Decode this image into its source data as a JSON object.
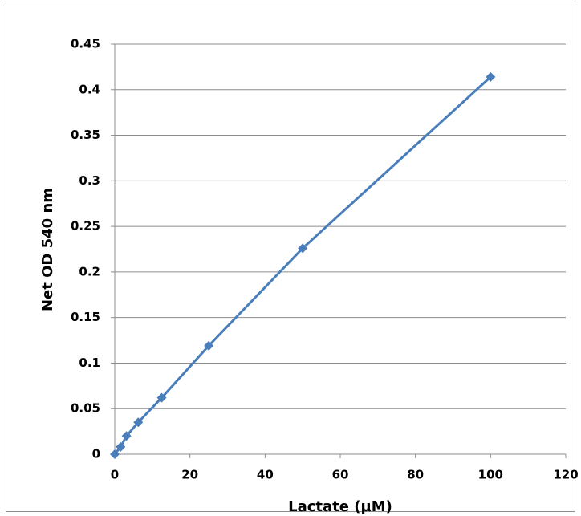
{
  "chart_data": {
    "type": "scatter",
    "x_label": "Lactate (µM)",
    "y_label": "Net OD 540 nm",
    "series": [
      {
        "color": "#4a7ebb",
        "x": [
          0,
          1.5625,
          3.125,
          6.25,
          12.5,
          25,
          50,
          100
        ],
        "values": [
          0,
          0.008,
          0.02,
          0.035,
          0.062,
          0.119,
          0.226,
          0.414
        ]
      }
    ],
    "xlim": [
      0,
      120
    ],
    "xticks": [
      0,
      20,
      40,
      60,
      80,
      100,
      120
    ],
    "ylim": [
      0,
      0.45
    ],
    "yticks": [
      0,
      0.05,
      0.1,
      0.15,
      0.2,
      0.25,
      0.3,
      0.35,
      0.4,
      0.45
    ],
    "grid": true,
    "lines": true
  }
}
